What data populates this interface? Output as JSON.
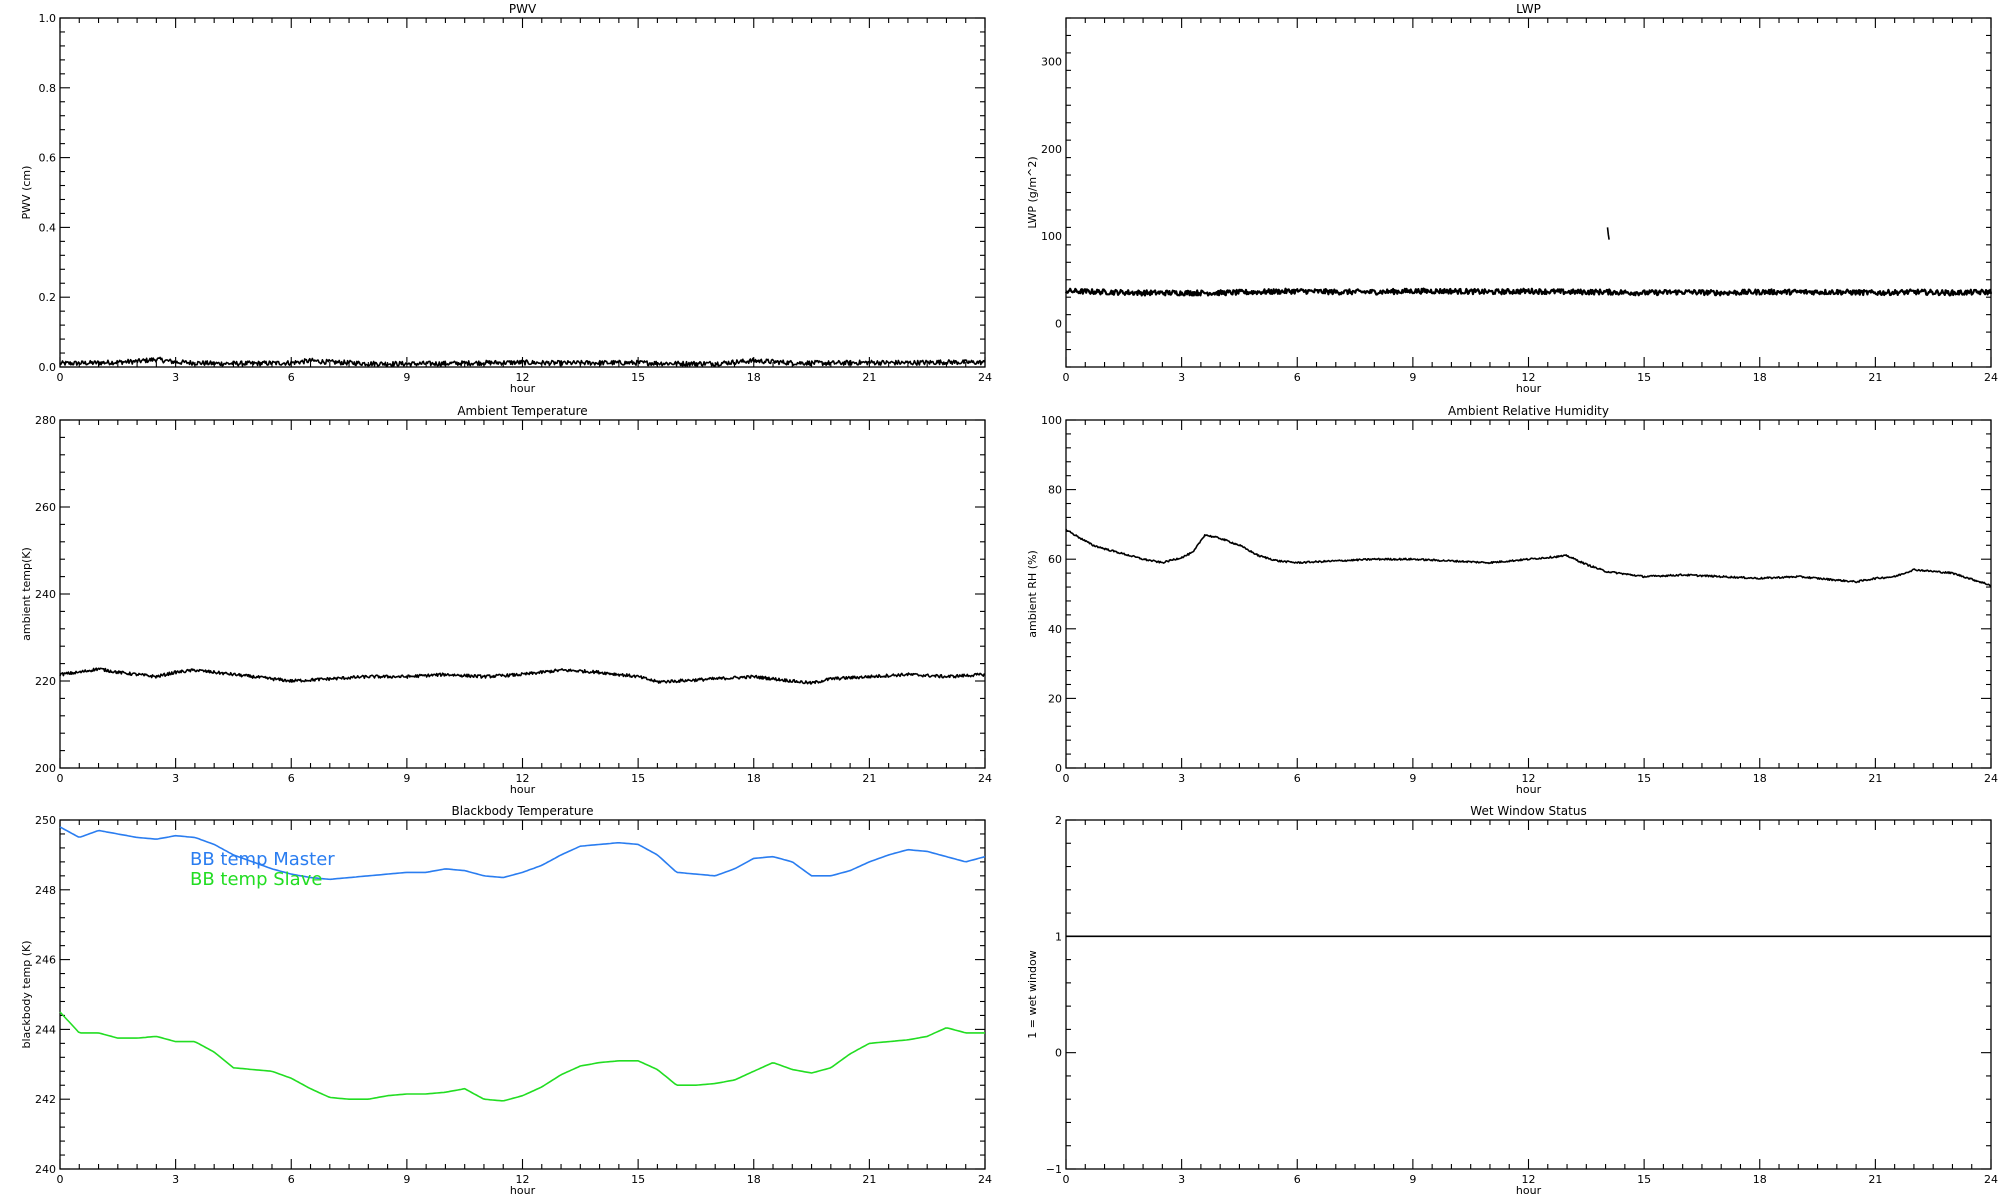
{
  "chart_data": [
    {
      "type": "line",
      "title": "PWV",
      "xlabel": "hour",
      "ylabel": "PWV (cm)",
      "xlim": [
        0,
        24
      ],
      "ylim": [
        0,
        1
      ],
      "xticks": [
        0,
        3,
        6,
        9,
        12,
        15,
        18,
        21,
        24
      ],
      "xtick_labels": [
        "0",
        "3",
        "6",
        "9",
        "12",
        "15",
        "18",
        "21",
        "24"
      ],
      "yticks": [
        0,
        0.2,
        0.4,
        0.6,
        0.8,
        1.0
      ],
      "ytick_labels": [
        "0.0",
        "0.2",
        "0.4",
        "0.6",
        "0.8",
        "1.0"
      ],
      "grid": false,
      "series": [
        {
          "color": "#000000",
          "noise": 0.007,
          "x": [
            0,
            1,
            2,
            2.5,
            3,
            4,
            5,
            6,
            6.5,
            7,
            8,
            9,
            10,
            11,
            12,
            13,
            14,
            15,
            16,
            17,
            18,
            19,
            20,
            21,
            22,
            23,
            24
          ],
          "y": [
            0.01,
            0.012,
            0.016,
            0.022,
            0.014,
            0.01,
            0.01,
            0.012,
            0.018,
            0.014,
            0.01,
            0.009,
            0.01,
            0.012,
            0.013,
            0.011,
            0.012,
            0.012,
            0.01,
            0.01,
            0.018,
            0.012,
            0.011,
            0.013,
            0.012,
            0.014,
            0.013
          ]
        }
      ]
    },
    {
      "type": "line",
      "title": "LWP",
      "xlabel": "hour",
      "ylabel": "LWP (g/m^2)",
      "xlim": [
        0,
        24
      ],
      "ylim": [
        -50,
        350
      ],
      "xticks": [
        0,
        3,
        6,
        9,
        12,
        15,
        18,
        21,
        24
      ],
      "xtick_labels": [
        "0",
        "3",
        "6",
        "9",
        "12",
        "15",
        "18",
        "21",
        "24"
      ],
      "yticks": [
        0,
        100,
        200,
        300
      ],
      "ytick_labels": [
        "0",
        "100",
        "200",
        "300"
      ],
      "grid": false,
      "series": [
        {
          "color": "#000000",
          "noise": 3,
          "x": [
            0,
            1,
            2,
            3,
            4,
            5,
            6,
            7,
            8,
            9,
            10,
            11,
            12,
            13,
            14,
            15,
            16,
            17,
            18,
            19,
            20,
            21,
            22,
            23,
            24
          ],
          "y": [
            37,
            36,
            35,
            35,
            35,
            36,
            37,
            36,
            36,
            37,
            37,
            36,
            37,
            36,
            36,
            35,
            36,
            35,
            36,
            36,
            36,
            35,
            36,
            35,
            36
          ]
        },
        {
          "color": "#000000",
          "noise": 0,
          "x": [
            14.05,
            14.07,
            14.09
          ],
          "y": [
            110,
            102,
            96
          ]
        }
      ]
    },
    {
      "type": "line",
      "title": "Ambient Temperature",
      "xlabel": "hour",
      "ylabel": "ambient temp(K)",
      "xlim": [
        0,
        24
      ],
      "ylim": [
        200,
        280
      ],
      "xticks": [
        0,
        3,
        6,
        9,
        12,
        15,
        18,
        21,
        24
      ],
      "xtick_labels": [
        "0",
        "3",
        "6",
        "9",
        "12",
        "15",
        "18",
        "21",
        "24"
      ],
      "yticks": [
        200,
        220,
        240,
        260,
        280
      ],
      "ytick_labels": [
        "200",
        "220",
        "240",
        "260",
        "280"
      ],
      "grid": false,
      "series": [
        {
          "color": "#000000",
          "noise": 0.35,
          "x": [
            0,
            0.5,
            1,
            1.5,
            2,
            2.5,
            3,
            3.5,
            4,
            4.5,
            5,
            5.5,
            6,
            7,
            8,
            9,
            10,
            11,
            12,
            12.5,
            13,
            13.5,
            14,
            15,
            15.5,
            16,
            17,
            18,
            19,
            19.5,
            20,
            21,
            22,
            23,
            24
          ],
          "y": [
            221.5,
            222,
            222.8,
            222,
            221.5,
            221,
            222,
            222.5,
            222,
            221.5,
            221,
            220.5,
            220,
            220.5,
            221,
            221,
            221.5,
            221,
            221.5,
            222,
            222.5,
            222.3,
            222,
            221,
            219.8,
            220,
            220.5,
            221,
            220,
            219.5,
            220.5,
            221,
            221.5,
            221,
            221.5
          ]
        }
      ]
    },
    {
      "type": "line",
      "title": "Ambient Relative Humidity",
      "xlabel": "hour",
      "ylabel": "ambient RH (%)",
      "xlim": [
        0,
        24
      ],
      "ylim": [
        0,
        100
      ],
      "xticks": [
        0,
        3,
        6,
        9,
        12,
        15,
        18,
        21,
        24
      ],
      "xtick_labels": [
        "0",
        "3",
        "6",
        "9",
        "12",
        "15",
        "18",
        "21",
        "24"
      ],
      "yticks": [
        0,
        20,
        40,
        60,
        80,
        100
      ],
      "ytick_labels": [
        "0",
        "20",
        "40",
        "60",
        "80",
        "100"
      ],
      "grid": false,
      "series": [
        {
          "color": "#000000",
          "noise": 0.25,
          "x": [
            0,
            0.3,
            0.7,
            1,
            1.5,
            2,
            2.5,
            3,
            3.3,
            3.6,
            4,
            4.5,
            5,
            5.5,
            6,
            7,
            8,
            9,
            10,
            11,
            12,
            12.5,
            13,
            13.5,
            14,
            15,
            16,
            17,
            18,
            19,
            20,
            20.5,
            21,
            21.5,
            22,
            23,
            24
          ],
          "y": [
            68.5,
            66.5,
            64,
            63,
            61.5,
            60,
            59,
            60.5,
            62,
            67,
            66,
            64,
            61,
            59.5,
            59,
            59.5,
            60,
            60,
            59.5,
            59,
            60,
            60.5,
            61,
            58.5,
            56.5,
            55,
            55.5,
            55,
            54.5,
            55,
            54,
            53.5,
            54.5,
            55,
            57,
            56,
            52.5
          ]
        }
      ]
    },
    {
      "type": "line",
      "title": "Blackbody Temperature",
      "xlabel": "hour",
      "ylabel": "blackbody temp (K)",
      "xlim": [
        0,
        24
      ],
      "ylim": [
        240,
        250
      ],
      "xticks": [
        0,
        3,
        6,
        9,
        12,
        15,
        18,
        21,
        24
      ],
      "xtick_labels": [
        "0",
        "3",
        "6",
        "9",
        "12",
        "15",
        "18",
        "21",
        "24"
      ],
      "yticks": [
        240,
        242,
        244,
        246,
        248,
        250
      ],
      "ytick_labels": [
        "240",
        "242",
        "244",
        "246",
        "248",
        "250"
      ],
      "grid": false,
      "legend": {
        "placement": "top-left",
        "entries": [
          {
            "label": "BB temp Master",
            "color": "#2a7df0"
          },
          {
            "label": "BB temp Slave",
            "color": "#22dd22"
          }
        ]
      },
      "series": [
        {
          "name": "BB temp Master",
          "color": "#2a7df0",
          "noise": 0,
          "x": [
            0,
            0.5,
            1,
            1.5,
            2,
            2.5,
            3,
            3.5,
            4,
            4.5,
            5,
            5.5,
            6,
            6.5,
            7,
            7.5,
            8,
            8.5,
            9,
            9.5,
            10,
            10.5,
            11,
            11.5,
            12,
            12.5,
            13,
            13.5,
            14,
            14.5,
            15,
            15.5,
            16,
            16.5,
            17,
            17.5,
            18,
            18.5,
            19,
            19.5,
            20,
            20.5,
            21,
            21.5,
            22,
            22.5,
            23,
            23.5,
            24
          ],
          "y": [
            249.8,
            249.5,
            249.7,
            249.6,
            249.5,
            249.45,
            249.55,
            249.5,
            249.3,
            249.0,
            248.8,
            248.6,
            248.45,
            248.35,
            248.3,
            248.35,
            248.4,
            248.45,
            248.5,
            248.5,
            248.6,
            248.55,
            248.4,
            248.35,
            248.5,
            248.7,
            249.0,
            249.25,
            249.3,
            249.35,
            249.3,
            249.0,
            248.5,
            248.45,
            248.4,
            248.6,
            248.9,
            248.95,
            248.8,
            248.4,
            248.4,
            248.55,
            248.8,
            249.0,
            249.15,
            249.1,
            248.95,
            248.8,
            248.95
          ]
        },
        {
          "name": "BB temp Slave",
          "color": "#22dd22",
          "noise": 0,
          "x": [
            0,
            0.5,
            1,
            1.5,
            2,
            2.5,
            3,
            3.5,
            4,
            4.5,
            5,
            5.5,
            6,
            6.5,
            7,
            7.5,
            8,
            8.5,
            9,
            9.5,
            10,
            10.5,
            11,
            11.5,
            12,
            12.5,
            13,
            13.5,
            14,
            14.5,
            15,
            15.5,
            16,
            16.5,
            17,
            17.5,
            18,
            18.5,
            19,
            19.5,
            20,
            20.5,
            21,
            21.5,
            22,
            22.5,
            23,
            23.5,
            24
          ],
          "y": [
            244.5,
            243.9,
            243.9,
            243.75,
            243.75,
            243.8,
            243.65,
            243.65,
            243.35,
            242.9,
            242.85,
            242.8,
            242.6,
            242.3,
            242.05,
            242.0,
            242.0,
            242.1,
            242.15,
            242.15,
            242.2,
            242.3,
            242.0,
            241.95,
            242.1,
            242.35,
            242.7,
            242.95,
            243.05,
            243.1,
            243.1,
            242.85,
            242.4,
            242.4,
            242.45,
            242.55,
            242.8,
            243.05,
            242.85,
            242.75,
            242.9,
            243.3,
            243.6,
            243.65,
            243.7,
            243.8,
            244.05,
            243.9,
            243.9
          ]
        }
      ]
    },
    {
      "type": "line",
      "title": "Wet Window Status",
      "xlabel": "hour",
      "ylabel": "1 = wet window",
      "xlim": [
        0,
        24
      ],
      "ylim": [
        -1,
        2
      ],
      "xticks": [
        0,
        3,
        6,
        9,
        12,
        15,
        18,
        21,
        24
      ],
      "xtick_labels": [
        "0",
        "3",
        "6",
        "9",
        "12",
        "15",
        "18",
        "21",
        "24"
      ],
      "yticks": [
        -1,
        0,
        1,
        2
      ],
      "ytick_labels": [
        "−1",
        "0",
        "1",
        "2"
      ],
      "grid": false,
      "series": [
        {
          "color": "#000000",
          "noise": 0,
          "x": [
            0,
            24
          ],
          "y": [
            1,
            1
          ]
        }
      ]
    }
  ]
}
